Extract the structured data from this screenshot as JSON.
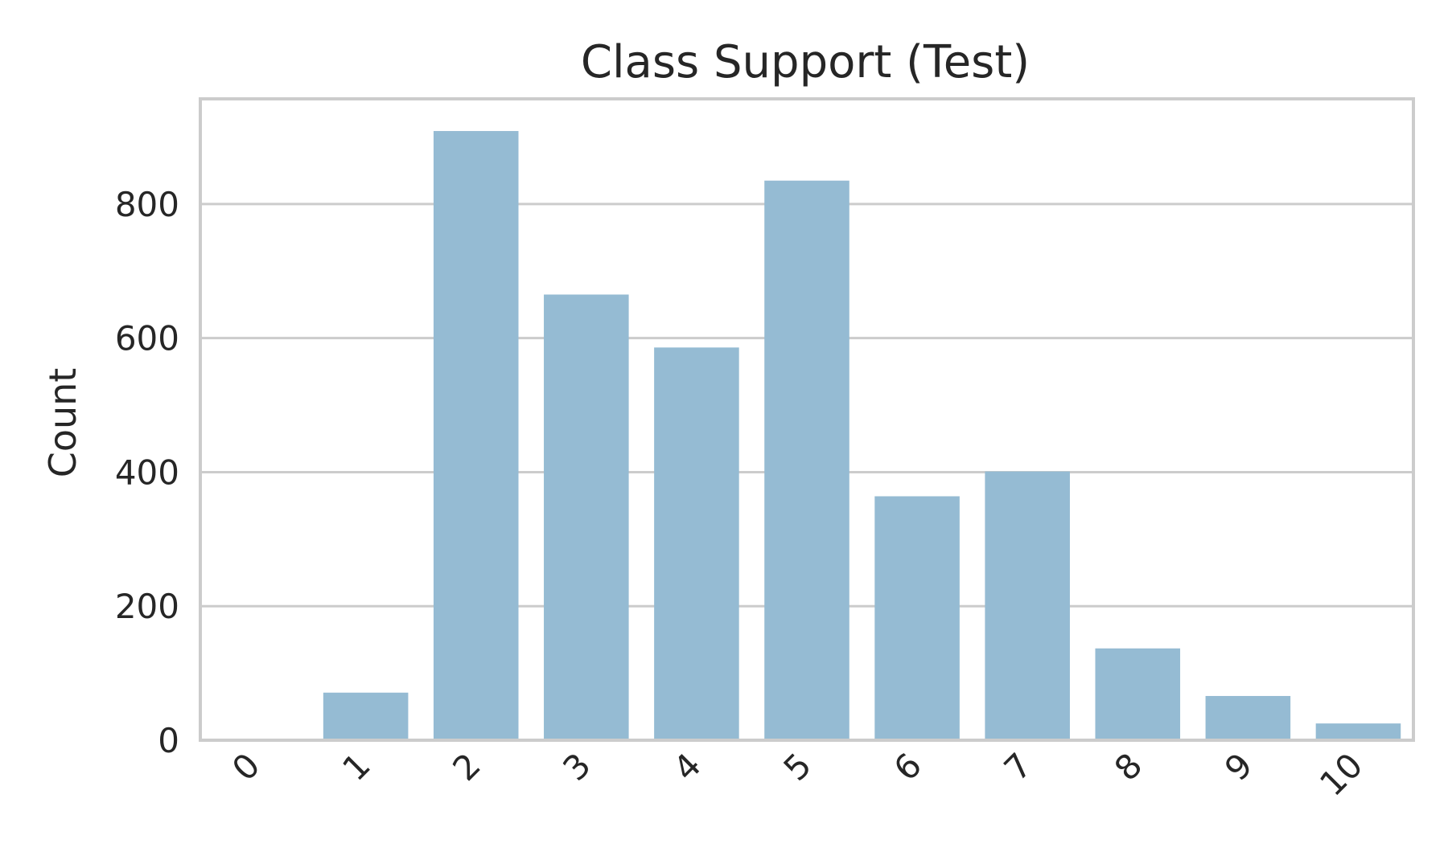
{
  "chart_data": {
    "type": "bar",
    "title": "Class Support (Test)",
    "xlabel": "",
    "ylabel": "Count",
    "categories": [
      "0",
      "1",
      "2",
      "3",
      "4",
      "5",
      "6",
      "7",
      "8",
      "9",
      "10"
    ],
    "values": [
      0,
      71,
      909,
      665,
      586,
      835,
      364,
      401,
      137,
      66,
      25
    ],
    "ylim": [
      0,
      957
    ],
    "yticks": [
      0,
      200,
      400,
      600,
      800
    ],
    "grid": true,
    "bar_color": "#95bbd3",
    "grid_color": "#cccccc",
    "frame_color": "#cccccc",
    "text_color": "#262626"
  }
}
